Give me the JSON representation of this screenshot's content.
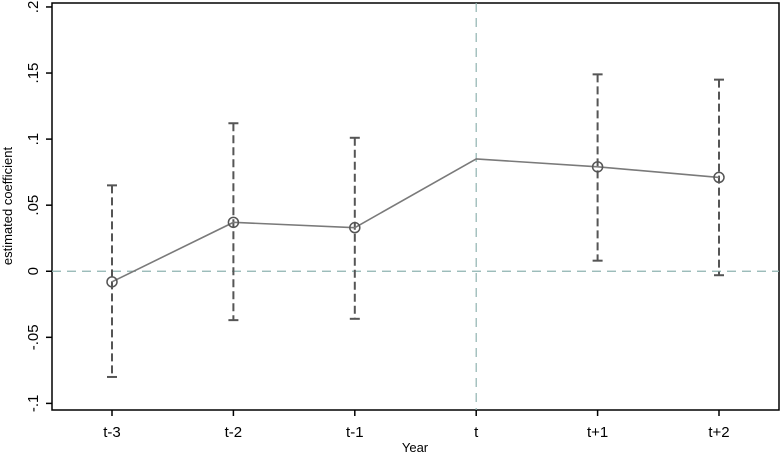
{
  "chart_data": {
    "type": "line",
    "title": "",
    "xlabel": "Year",
    "ylabel": "estimated coefficient",
    "categories": [
      "t-3",
      "t-2",
      "t-1",
      "t",
      "t+1",
      "t+2"
    ],
    "y_ticks": [
      {
        "value": 0.2,
        "label": ".2"
      },
      {
        "value": 0.15,
        "label": ".15"
      },
      {
        "value": 0.1,
        "label": ".1"
      },
      {
        "value": 0.05,
        "label": ".05"
      },
      {
        "value": 0,
        "label": "0"
      },
      {
        "value": -0.05,
        "label": "-.05"
      },
      {
        "value": -0.1,
        "label": "-.1"
      }
    ],
    "ylim": [
      -0.105,
      0.203
    ],
    "grid": false,
    "series": [
      {
        "values": [
          -0.008,
          0.037,
          0.033,
          0.085,
          0.079,
          0.071
        ],
        "markers": [
          true,
          true,
          true,
          false,
          true,
          true
        ],
        "ci_lower": [
          -0.08,
          -0.037,
          -0.036,
          null,
          0.008,
          -0.003
        ],
        "ci_upper": [
          0.065,
          0.112,
          0.101,
          null,
          0.149,
          0.145
        ]
      }
    ],
    "reference_lines": {
      "horizontal_value": 0,
      "vertical_category": "t"
    },
    "colors": {
      "line": "#7a7a7a",
      "marker": "#555555",
      "ci": "#555555",
      "reference": "#8fb3b0",
      "axis": "#000000"
    }
  }
}
